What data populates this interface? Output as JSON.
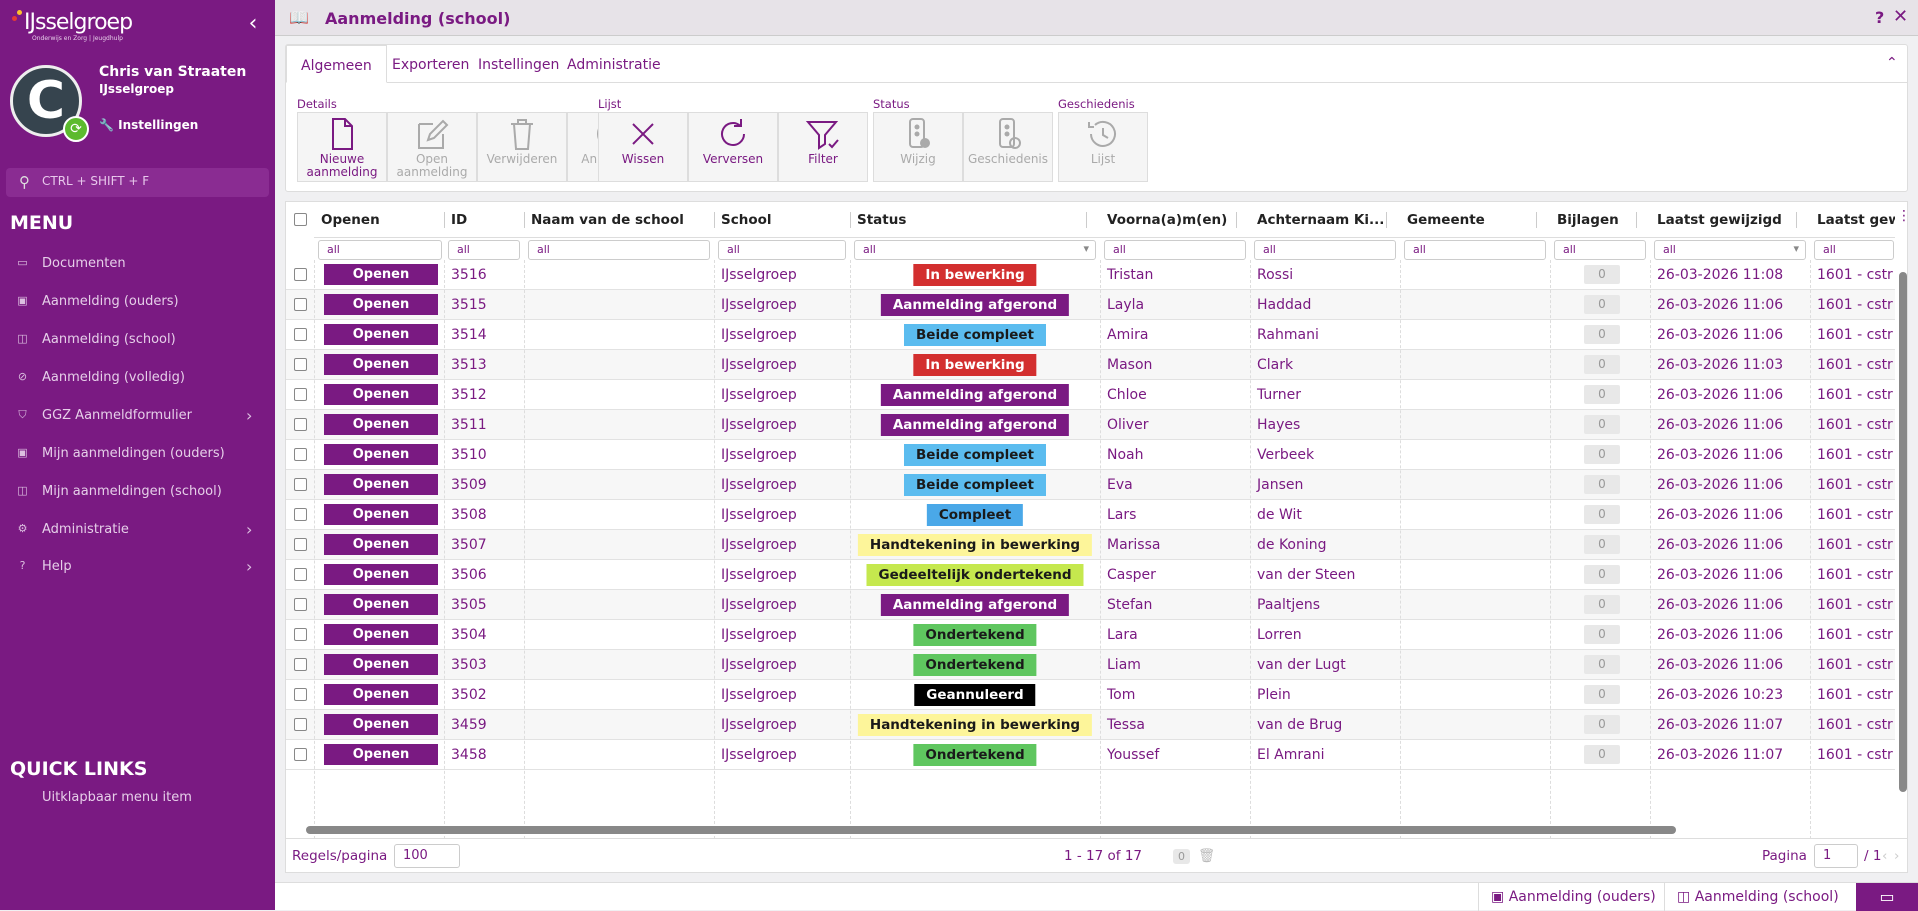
{
  "sidebar": {
    "logo_text": "IJsselgroep",
    "logo_subtitle": "Onderwijs en Zorg | Jeugdhulp",
    "user_initial": "C",
    "user_name": "Chris van Straaten",
    "user_org": "IJsselgroep",
    "settings_label": "Instellingen",
    "search_placeholder": "CTRL + SHIFT + F",
    "menu_title": "MENU",
    "items": [
      {
        "label": "Documenten",
        "icon": "document-icon",
        "chevron": false
      },
      {
        "label": "Aanmelding (ouders)",
        "icon": "person-badge-icon",
        "chevron": false
      },
      {
        "label": "Aanmelding (school)",
        "icon": "book-icon",
        "chevron": false
      },
      {
        "label": "Aanmelding (volledig)",
        "icon": "link-icon",
        "chevron": false
      },
      {
        "label": "GGZ Aanmeldformulier",
        "icon": "shield-icon",
        "chevron": true
      },
      {
        "label": "Mijn aanmeldingen (ouders)",
        "icon": "person-badge-icon",
        "chevron": false
      },
      {
        "label": "Mijn aanmeldingen (school)",
        "icon": "book-icon",
        "chevron": false
      },
      {
        "label": "Administratie",
        "icon": "gears-icon",
        "chevron": true
      },
      {
        "label": "Help",
        "icon": "question-icon",
        "chevron": true
      }
    ],
    "quick_links_title": "QUICK LINKS",
    "quick_links": [
      "Uitklapbaar menu item"
    ]
  },
  "window": {
    "title": "Aanmelding (school)",
    "help": "?",
    "close": "✕"
  },
  "ribbon": {
    "tabs": [
      "Algemeen",
      "Exporteren",
      "Instellingen",
      "Administratie"
    ],
    "active_tab": "Algemeen",
    "groups": {
      "details": "Details",
      "lijst": "Lijst",
      "status": "Status",
      "geschiedenis": "Geschiedenis"
    },
    "buttons": {
      "nieuwe": "Nieuwe aanmelding",
      "open": "Open aanmelding",
      "verwijderen": "Verwijderen",
      "annuleren": "Annuleren",
      "wissen": "Wissen",
      "verversen": "Verversen",
      "filter": "Filter",
      "wijzig": "Wijzig",
      "geschiedenis": "Geschiedenis",
      "lijst": "Lijst"
    }
  },
  "grid": {
    "columns": [
      "Openen",
      "ID",
      "Naam van de school",
      "School",
      "Status",
      "Voorna(a)m(en)",
      "Achternaam Ki...",
      "Gemeente",
      "Bijlagen",
      "Laatst gewijzigd",
      "Laatst gew"
    ],
    "filter_placeholder": "all",
    "open_label": "Openen",
    "rows": [
      {
        "id": "3516",
        "school": "IJsselgroep",
        "status": "In bewerking",
        "status_color": "#d32f2f",
        "status_text_color": "#ffffff",
        "voornaam": "Tristan",
        "achternaam": "Rossi",
        "bijlagen": "0",
        "gewijzigd": "26-03-2026 11:08",
        "gew2": "1601 - cstr"
      },
      {
        "id": "3515",
        "school": "IJsselgroep",
        "status": "Aanmelding afgerond",
        "status_color": "#7a1a82",
        "status_text_color": "#ffffff",
        "voornaam": "Layla",
        "achternaam": "Haddad",
        "bijlagen": "0",
        "gewijzigd": "26-03-2026 11:06",
        "gew2": "1601 - cstr"
      },
      {
        "id": "3514",
        "school": "IJsselgroep",
        "status": "Beide compleet",
        "status_color": "#5bbcef",
        "status_text_color": "#1a1a1a",
        "voornaam": "Amira",
        "achternaam": "Rahmani",
        "bijlagen": "0",
        "gewijzigd": "26-03-2026 11:06",
        "gew2": "1601 - cstr"
      },
      {
        "id": "3513",
        "school": "IJsselgroep",
        "status": "In bewerking",
        "status_color": "#d32f2f",
        "status_text_color": "#ffffff",
        "voornaam": "Mason",
        "achternaam": "Clark",
        "bijlagen": "0",
        "gewijzigd": "26-03-2026 11:03",
        "gew2": "1601 - cstr"
      },
      {
        "id": "3512",
        "school": "IJsselgroep",
        "status": "Aanmelding afgerond",
        "status_color": "#7a1a82",
        "status_text_color": "#ffffff",
        "voornaam": "Chloe",
        "achternaam": "Turner",
        "bijlagen": "0",
        "gewijzigd": "26-03-2026 11:06",
        "gew2": "1601 - cstr"
      },
      {
        "id": "3511",
        "school": "IJsselgroep",
        "status": "Aanmelding afgerond",
        "status_color": "#7a1a82",
        "status_text_color": "#ffffff",
        "voornaam": "Oliver",
        "achternaam": "Hayes",
        "bijlagen": "0",
        "gewijzigd": "26-03-2026 11:06",
        "gew2": "1601 - cstr"
      },
      {
        "id": "3510",
        "school": "IJsselgroep",
        "status": "Beide compleet",
        "status_color": "#5bbcef",
        "status_text_color": "#1a1a1a",
        "voornaam": "Noah",
        "achternaam": "Verbeek",
        "bijlagen": "0",
        "gewijzigd": "26-03-2026 11:06",
        "gew2": "1601 - cstr"
      },
      {
        "id": "3509",
        "school": "IJsselgroep",
        "status": "Beide compleet",
        "status_color": "#5bbcef",
        "status_text_color": "#1a1a1a",
        "voornaam": "Eva",
        "achternaam": "Jansen",
        "bijlagen": "0",
        "gewijzigd": "26-03-2026 11:06",
        "gew2": "1601 - cstr"
      },
      {
        "id": "3508",
        "school": "IJsselgroep",
        "status": "Compleet",
        "status_color": "#4aa8e8",
        "status_text_color": "#1a1a1a",
        "voornaam": "Lars",
        "achternaam": "de Wit",
        "bijlagen": "0",
        "gewijzigd": "26-03-2026 11:06",
        "gew2": "1601 - cstr"
      },
      {
        "id": "3507",
        "school": "IJsselgroep",
        "status": "Handtekening in bewerking",
        "status_color": "#fdf59a",
        "status_text_color": "#1a1a1a",
        "voornaam": "Marissa",
        "achternaam": "de Koning",
        "bijlagen": "0",
        "gewijzigd": "26-03-2026 11:06",
        "gew2": "1601 - cstr"
      },
      {
        "id": "3506",
        "school": "IJsselgroep",
        "status": "Gedeeltelijk ondertekend",
        "status_color": "#c5e84e",
        "status_text_color": "#1a1a1a",
        "voornaam": "Casper",
        "achternaam": "van der Steen",
        "bijlagen": "0",
        "gewijzigd": "26-03-2026 11:06",
        "gew2": "1601 - cstr"
      },
      {
        "id": "3505",
        "school": "IJsselgroep",
        "status": "Aanmelding afgerond",
        "status_color": "#7a1a82",
        "status_text_color": "#ffffff",
        "voornaam": "Stefan",
        "achternaam": "Paaltjens",
        "bijlagen": "0",
        "gewijzigd": "26-03-2026 11:06",
        "gew2": "1601 - cstr"
      },
      {
        "id": "3504",
        "school": "IJsselgroep",
        "status": "Ondertekend",
        "status_color": "#5fc65f",
        "status_text_color": "#1a1a1a",
        "voornaam": "Lara",
        "achternaam": "Lorren",
        "bijlagen": "0",
        "gewijzigd": "26-03-2026 11:06",
        "gew2": "1601 - cstr"
      },
      {
        "id": "3503",
        "school": "IJsselgroep",
        "status": "Ondertekend",
        "status_color": "#5fc65f",
        "status_text_color": "#1a1a1a",
        "voornaam": "Liam",
        "achternaam": "van der Lugt",
        "bijlagen": "0",
        "gewijzigd": "26-03-2026 11:06",
        "gew2": "1601 - cstr"
      },
      {
        "id": "3502",
        "school": "IJsselgroep",
        "status": "Geannuleerd",
        "status_color": "#000000",
        "status_text_color": "#ffffff",
        "voornaam": "Tom",
        "achternaam": "Plein",
        "bijlagen": "0",
        "gewijzigd": "26-03-2026 10:23",
        "gew2": "1601 - cstr"
      },
      {
        "id": "3459",
        "school": "IJsselgroep",
        "status": "Handtekening in bewerking",
        "status_color": "#fdf59a",
        "status_text_color": "#1a1a1a",
        "voornaam": "Tessa",
        "achternaam": "van de Brug",
        "bijlagen": "0",
        "gewijzigd": "26-03-2026 11:07",
        "gew2": "1601 - cstr"
      },
      {
        "id": "3458",
        "school": "IJsselgroep",
        "status": "Ondertekend",
        "status_color": "#5fc65f",
        "status_text_color": "#1a1a1a",
        "voornaam": "Youssef",
        "achternaam": "El Amrani",
        "bijlagen": "0",
        "gewijzigd": "26-03-2026 11:07",
        "gew2": "1601 - cstr"
      }
    ]
  },
  "footer": {
    "rows_per_page_label": "Regels/pagina",
    "rows_per_page": "100",
    "range": "1 - 17 of 17",
    "selected_count": "0",
    "page_label": "Pagina",
    "page": "1",
    "page_total": "/ 1"
  },
  "bottom_tabs": [
    "Aanmelding (ouders)",
    "Aanmelding (school)"
  ],
  "colors": {
    "brand": "#7a1a82",
    "accent_green": "#5cba2e"
  }
}
